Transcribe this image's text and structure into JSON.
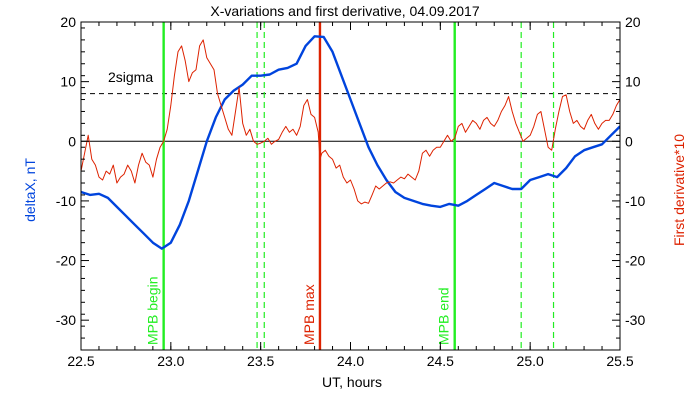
{
  "chart_data": {
    "type": "line",
    "title": "X-variations and first derivative, 04.09.2017",
    "xlabel": "UT, hours",
    "ylabel": "deltaX, nT",
    "ylabel_right": "First derivative*10",
    "xlim": [
      22.5,
      25.5
    ],
    "ylim": [
      -35,
      20
    ],
    "x_ticks": [
      22.5,
      23.0,
      23.5,
      24.0,
      24.5,
      25.0,
      25.5
    ],
    "x_tick_labels": [
      "22.5",
      "23.0",
      "23.5",
      "24.0",
      "24.5",
      "25.0",
      "25.5"
    ],
    "y_ticks": [
      -30,
      -20,
      -10,
      0,
      10,
      20
    ],
    "y_tick_labels": [
      "-30",
      "-20",
      "-10",
      "0",
      "10",
      "20"
    ],
    "colors": {
      "deltaX": "#0044dd",
      "derivative": "#dd2200",
      "mpb_boundary": "#22ee22",
      "mpb_max": "#dd2200",
      "sigma": "#000000",
      "zero": "#000000",
      "right_axis_label": "#dd2200",
      "left_axis_label": "#0044dd"
    },
    "sigma_level": {
      "label": "2sigma",
      "value": 8
    },
    "zero_line": 0,
    "markers": [
      {
        "label": "MPB begin",
        "x": 22.96,
        "color": "#22ee22"
      },
      {
        "label": "MPB max",
        "x": 23.83,
        "color": "#dd2200"
      },
      {
        "label": "MPB end",
        "x": 24.58,
        "color": "#22ee22"
      }
    ],
    "dashed_verticals": [
      23.48,
      23.52,
      24.95,
      25.13
    ],
    "series": [
      {
        "key": "deltaX",
        "points": [
          [
            22.5,
            -8.5
          ],
          [
            22.55,
            -9
          ],
          [
            22.6,
            -8.8
          ],
          [
            22.65,
            -9.5
          ],
          [
            22.7,
            -11
          ],
          [
            22.75,
            -12.5
          ],
          [
            22.8,
            -14
          ],
          [
            22.85,
            -15.5
          ],
          [
            22.9,
            -17
          ],
          [
            22.95,
            -18
          ],
          [
            23.0,
            -17
          ],
          [
            23.05,
            -14
          ],
          [
            23.1,
            -10
          ],
          [
            23.15,
            -5
          ],
          [
            23.2,
            0
          ],
          [
            23.25,
            4
          ],
          [
            23.3,
            7
          ],
          [
            23.35,
            8.5
          ],
          [
            23.4,
            9.5
          ],
          [
            23.45,
            11
          ],
          [
            23.5,
            11
          ],
          [
            23.55,
            11.2
          ],
          [
            23.6,
            12
          ],
          [
            23.65,
            12.3
          ],
          [
            23.7,
            13
          ],
          [
            23.75,
            16
          ],
          [
            23.8,
            17.6
          ],
          [
            23.85,
            17.5
          ],
          [
            23.9,
            15
          ],
          [
            23.95,
            11
          ],
          [
            24.0,
            7
          ],
          [
            24.05,
            3
          ],
          [
            24.1,
            -1
          ],
          [
            24.15,
            -4
          ],
          [
            24.2,
            -6.5
          ],
          [
            24.25,
            -8.5
          ],
          [
            24.3,
            -9.5
          ],
          [
            24.35,
            -10
          ],
          [
            24.4,
            -10.5
          ],
          [
            24.45,
            -10.8
          ],
          [
            24.5,
            -11
          ],
          [
            24.55,
            -10.5
          ],
          [
            24.6,
            -10.8
          ],
          [
            24.65,
            -10
          ],
          [
            24.7,
            -9
          ],
          [
            24.75,
            -8
          ],
          [
            24.8,
            -7
          ],
          [
            24.85,
            -7.5
          ],
          [
            24.9,
            -8
          ],
          [
            24.95,
            -8
          ],
          [
            25.0,
            -6.5
          ],
          [
            25.05,
            -6
          ],
          [
            25.1,
            -5.5
          ],
          [
            25.15,
            -6
          ],
          [
            25.2,
            -4.5
          ],
          [
            25.25,
            -2.5
          ],
          [
            25.3,
            -1.5
          ],
          [
            25.35,
            -1
          ],
          [
            25.4,
            -0.5
          ],
          [
            25.45,
            1
          ],
          [
            25.5,
            2.5
          ]
        ]
      },
      {
        "key": "derivative",
        "points": [
          [
            22.5,
            -5
          ],
          [
            22.52,
            -2
          ],
          [
            22.54,
            1
          ],
          [
            22.56,
            -3
          ],
          [
            22.58,
            -4
          ],
          [
            22.6,
            -6
          ],
          [
            22.62,
            -6.5
          ],
          [
            22.64,
            -5
          ],
          [
            22.66,
            -5.5
          ],
          [
            22.68,
            -4
          ],
          [
            22.7,
            -7
          ],
          [
            22.72,
            -6
          ],
          [
            22.74,
            -5.5
          ],
          [
            22.76,
            -4
          ],
          [
            22.78,
            -5
          ],
          [
            22.8,
            -7
          ],
          [
            22.82,
            -4
          ],
          [
            22.84,
            -2
          ],
          [
            22.86,
            -3.5
          ],
          [
            22.88,
            -4
          ],
          [
            22.9,
            -6
          ],
          [
            22.92,
            -3
          ],
          [
            22.94,
            -1
          ],
          [
            22.96,
            0
          ],
          [
            22.98,
            2
          ],
          [
            23.0,
            6
          ],
          [
            23.02,
            11
          ],
          [
            23.04,
            15
          ],
          [
            23.06,
            16
          ],
          [
            23.08,
            13.5
          ],
          [
            23.1,
            10
          ],
          [
            23.12,
            11.5
          ],
          [
            23.14,
            12
          ],
          [
            23.16,
            16
          ],
          [
            23.18,
            17
          ],
          [
            23.2,
            14
          ],
          [
            23.22,
            13
          ],
          [
            23.24,
            12
          ],
          [
            23.26,
            8
          ],
          [
            23.28,
            6
          ],
          [
            23.3,
            4
          ],
          [
            23.32,
            2
          ],
          [
            23.34,
            1
          ],
          [
            23.36,
            5
          ],
          [
            23.38,
            9
          ],
          [
            23.4,
            3
          ],
          [
            23.42,
            1
          ],
          [
            23.44,
            2
          ],
          [
            23.46,
            0
          ],
          [
            23.48,
            -0.5
          ],
          [
            23.5,
            -0.3
          ],
          [
            23.52,
            0
          ],
          [
            23.54,
            0.5
          ],
          [
            23.56,
            -0.5
          ],
          [
            23.58,
            0
          ],
          [
            23.6,
            0.3
          ],
          [
            23.62,
            1.5
          ],
          [
            23.64,
            2.5
          ],
          [
            23.66,
            1.5
          ],
          [
            23.68,
            2
          ],
          [
            23.7,
            1
          ],
          [
            23.72,
            2.5
          ],
          [
            23.74,
            6
          ],
          [
            23.76,
            7
          ],
          [
            23.78,
            4.5
          ],
          [
            23.8,
            4
          ],
          [
            23.82,
            1.5
          ],
          [
            23.83,
            -3
          ],
          [
            23.84,
            -2
          ],
          [
            23.86,
            -1.5
          ],
          [
            23.88,
            -2.5
          ],
          [
            23.9,
            -3
          ],
          [
            23.92,
            -4.5
          ],
          [
            23.94,
            -4
          ],
          [
            23.96,
            -6
          ],
          [
            23.98,
            -7
          ],
          [
            24.0,
            -6.5
          ],
          [
            24.02,
            -8
          ],
          [
            24.04,
            -10
          ],
          [
            24.06,
            -10.5
          ],
          [
            24.08,
            -10.2
          ],
          [
            24.1,
            -10.4
          ],
          [
            24.12,
            -9
          ],
          [
            24.14,
            -7.5
          ],
          [
            24.16,
            -8
          ],
          [
            24.18,
            -7.5
          ],
          [
            24.2,
            -7
          ],
          [
            24.22,
            -6.8
          ],
          [
            24.24,
            -7
          ],
          [
            24.26,
            -6.5
          ],
          [
            24.28,
            -6
          ],
          [
            24.3,
            -6.3
          ],
          [
            24.32,
            -5.5
          ],
          [
            24.34,
            -6
          ],
          [
            24.36,
            -6.5
          ],
          [
            24.38,
            -5
          ],
          [
            24.4,
            -2
          ],
          [
            24.42,
            -1.5
          ],
          [
            24.44,
            -2.5
          ],
          [
            24.46,
            -1.5
          ],
          [
            24.48,
            -1
          ],
          [
            24.5,
            -1
          ],
          [
            24.52,
            0
          ],
          [
            24.54,
            1
          ],
          [
            24.56,
            0
          ],
          [
            24.58,
            0.5
          ],
          [
            24.6,
            2.5
          ],
          [
            24.62,
            3
          ],
          [
            24.64,
            1.5
          ],
          [
            24.66,
            2.5
          ],
          [
            24.68,
            3.5
          ],
          [
            24.7,
            3
          ],
          [
            24.72,
            2
          ],
          [
            24.74,
            3.5
          ],
          [
            24.76,
            4
          ],
          [
            24.78,
            3
          ],
          [
            24.8,
            2.5
          ],
          [
            24.82,
            3.5
          ],
          [
            24.84,
            5
          ],
          [
            24.86,
            6
          ],
          [
            24.88,
            7.5
          ],
          [
            24.9,
            5
          ],
          [
            24.92,
            3
          ],
          [
            24.94,
            1.5
          ],
          [
            24.96,
            0
          ],
          [
            24.98,
            0.5
          ],
          [
            25.0,
            1
          ],
          [
            25.02,
            2.5
          ],
          [
            25.04,
            4.5
          ],
          [
            25.06,
            5
          ],
          [
            25.08,
            2
          ],
          [
            25.1,
            -1
          ],
          [
            25.12,
            -1.5
          ],
          [
            25.14,
            2
          ],
          [
            25.16,
            5
          ],
          [
            25.18,
            7.5
          ],
          [
            25.2,
            7.8
          ],
          [
            25.22,
            5
          ],
          [
            25.24,
            3
          ],
          [
            25.26,
            3.5
          ],
          [
            25.28,
            2.5
          ],
          [
            25.3,
            2
          ],
          [
            25.32,
            3.5
          ],
          [
            25.34,
            4.5
          ],
          [
            25.36,
            3
          ],
          [
            25.38,
            2
          ],
          [
            25.4,
            3
          ],
          [
            25.42,
            3.5
          ],
          [
            25.44,
            3.5
          ],
          [
            25.46,
            4.5
          ],
          [
            25.48,
            6
          ],
          [
            25.5,
            7
          ]
        ]
      }
    ]
  }
}
